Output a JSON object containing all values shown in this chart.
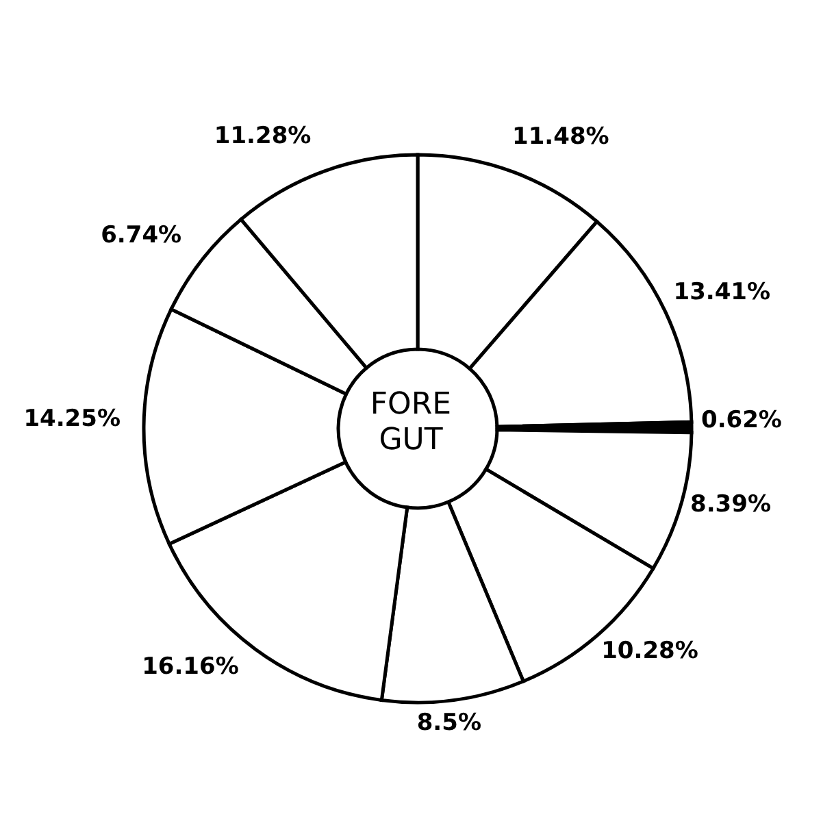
{
  "chart_data": {
    "type": "donut",
    "annotations": [
      "FORE GUT"
    ],
    "categories": [
      null,
      null,
      null,
      null,
      null,
      null,
      null,
      null,
      null,
      null
    ],
    "values": [
      11.48,
      13.41,
      0.62,
      8.39,
      10.28,
      8.5,
      16.16,
      14.25,
      6.74,
      11.28
    ],
    "value_labels": [
      "11.48%",
      "13.41%",
      "0.62%",
      "8.39%",
      "10.28%",
      "8.5%",
      "16.16%",
      "14.25%",
      "6.74%",
      "11.28%"
    ],
    "colors": [
      "#ffffff",
      "#ffffff",
      "#000000",
      "#ffffff",
      "#ffffff",
      "#ffffff",
      "#ffffff",
      "#ffffff",
      "#ffffff",
      "#ffffff"
    ]
  }
}
